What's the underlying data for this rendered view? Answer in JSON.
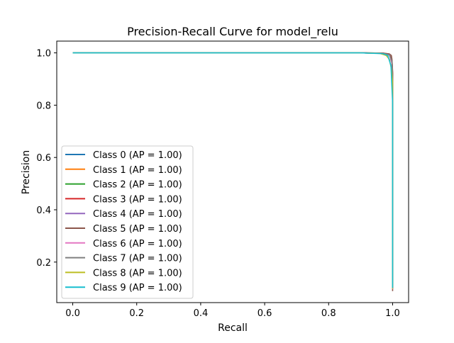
{
  "chart_data": {
    "type": "line",
    "title": "Precision-Recall Curve for model_relu",
    "xlabel": "Recall",
    "ylabel": "Precision",
    "xlim": [
      -0.05,
      1.05
    ],
    "ylim": [
      0.045,
      1.045
    ],
    "x_ticks": [
      {
        "value": 0.0,
        "label": "0.0"
      },
      {
        "value": 0.2,
        "label": "0.2"
      },
      {
        "value": 0.4,
        "label": "0.4"
      },
      {
        "value": 0.6,
        "label": "0.6"
      },
      {
        "value": 0.8,
        "label": "0.8"
      },
      {
        "value": 1.0,
        "label": "1.0"
      }
    ],
    "y_ticks": [
      {
        "value": 0.2,
        "label": "0.2"
      },
      {
        "value": 0.4,
        "label": "0.4"
      },
      {
        "value": 0.6,
        "label": "0.6"
      },
      {
        "value": 0.8,
        "label": "0.8"
      },
      {
        "value": 1.0,
        "label": "1.0"
      }
    ],
    "grid": false,
    "legend_position": "lower-left",
    "series": [
      {
        "name": "Class 0 (AP = 1.00)",
        "color": "#1f77b4",
        "points": [
          [
            0.0,
            1.0
          ],
          [
            0.9,
            1.0
          ],
          [
            0.97,
            0.998
          ],
          [
            0.99,
            0.992
          ],
          [
            0.998,
            0.96
          ],
          [
            1.0,
            0.9
          ],
          [
            1.0,
            0.098
          ]
        ]
      },
      {
        "name": "Class 1 (AP = 1.00)",
        "color": "#ff7f0e",
        "points": [
          [
            0.0,
            1.0
          ],
          [
            0.9,
            1.0
          ],
          [
            0.97,
            0.999
          ],
          [
            0.99,
            0.994
          ],
          [
            0.998,
            0.97
          ],
          [
            1.0,
            0.92
          ],
          [
            1.0,
            0.113
          ]
        ]
      },
      {
        "name": "Class 2 (AP = 1.00)",
        "color": "#2ca02c",
        "points": [
          [
            0.0,
            1.0
          ],
          [
            0.9,
            1.0
          ],
          [
            0.97,
            0.998
          ],
          [
            0.99,
            0.993
          ],
          [
            0.998,
            0.965
          ],
          [
            1.0,
            0.91
          ],
          [
            1.0,
            0.103
          ]
        ]
      },
      {
        "name": "Class 3 (AP = 1.00)",
        "color": "#d62728",
        "points": [
          [
            0.0,
            1.0
          ],
          [
            0.9,
            1.0
          ],
          [
            0.97,
            0.999
          ],
          [
            0.99,
            0.995
          ],
          [
            0.998,
            0.97
          ],
          [
            1.0,
            0.92
          ],
          [
            1.0,
            0.101
          ]
        ]
      },
      {
        "name": "Class 4 (AP = 1.00)",
        "color": "#9467bd",
        "points": [
          [
            0.0,
            1.0
          ],
          [
            0.9,
            1.0
          ],
          [
            0.97,
            0.998
          ],
          [
            0.99,
            0.993
          ],
          [
            0.998,
            0.962
          ],
          [
            1.0,
            0.9
          ],
          [
            1.0,
            0.098
          ]
        ]
      },
      {
        "name": "Class 5 (AP = 1.00)",
        "color": "#8c564b",
        "points": [
          [
            0.0,
            1.0
          ],
          [
            0.9,
            1.0
          ],
          [
            0.97,
            0.999
          ],
          [
            0.99,
            0.996
          ],
          [
            0.996,
            0.99
          ],
          [
            0.998,
            0.975
          ],
          [
            1.0,
            0.93
          ],
          [
            1.0,
            0.089
          ]
        ]
      },
      {
        "name": "Class 6 (AP = 1.00)",
        "color": "#e377c2",
        "points": [
          [
            0.0,
            1.0
          ],
          [
            0.9,
            1.0
          ],
          [
            0.97,
            0.998
          ],
          [
            0.99,
            0.992
          ],
          [
            0.998,
            0.96
          ],
          [
            1.0,
            0.9
          ],
          [
            1.0,
            0.096
          ]
        ]
      },
      {
        "name": "Class 7 (AP = 1.00)",
        "color": "#7f7f7f",
        "points": [
          [
            0.0,
            1.0
          ],
          [
            0.9,
            1.0
          ],
          [
            0.97,
            0.998
          ],
          [
            0.99,
            0.993
          ],
          [
            0.998,
            0.968
          ],
          [
            1.0,
            0.91
          ],
          [
            1.0,
            0.103
          ]
        ]
      },
      {
        "name": "Class 8 (AP = 1.00)",
        "color": "#bcbd22",
        "points": [
          [
            0.0,
            1.0
          ],
          [
            0.9,
            1.0
          ],
          [
            0.96,
            0.998
          ],
          [
            0.98,
            0.99
          ],
          [
            0.99,
            0.975
          ],
          [
            0.996,
            0.94
          ],
          [
            1.0,
            0.89
          ],
          [
            1.0,
            0.098
          ]
        ]
      },
      {
        "name": "Class 9 (AP = 1.00)",
        "color": "#17becf",
        "points": [
          [
            0.0,
            1.0
          ],
          [
            0.9,
            1.0
          ],
          [
            0.97,
            0.997
          ],
          [
            0.985,
            0.99
          ],
          [
            0.995,
            0.95
          ],
          [
            1.0,
            0.81
          ],
          [
            1.0,
            0.101
          ]
        ]
      }
    ]
  }
}
